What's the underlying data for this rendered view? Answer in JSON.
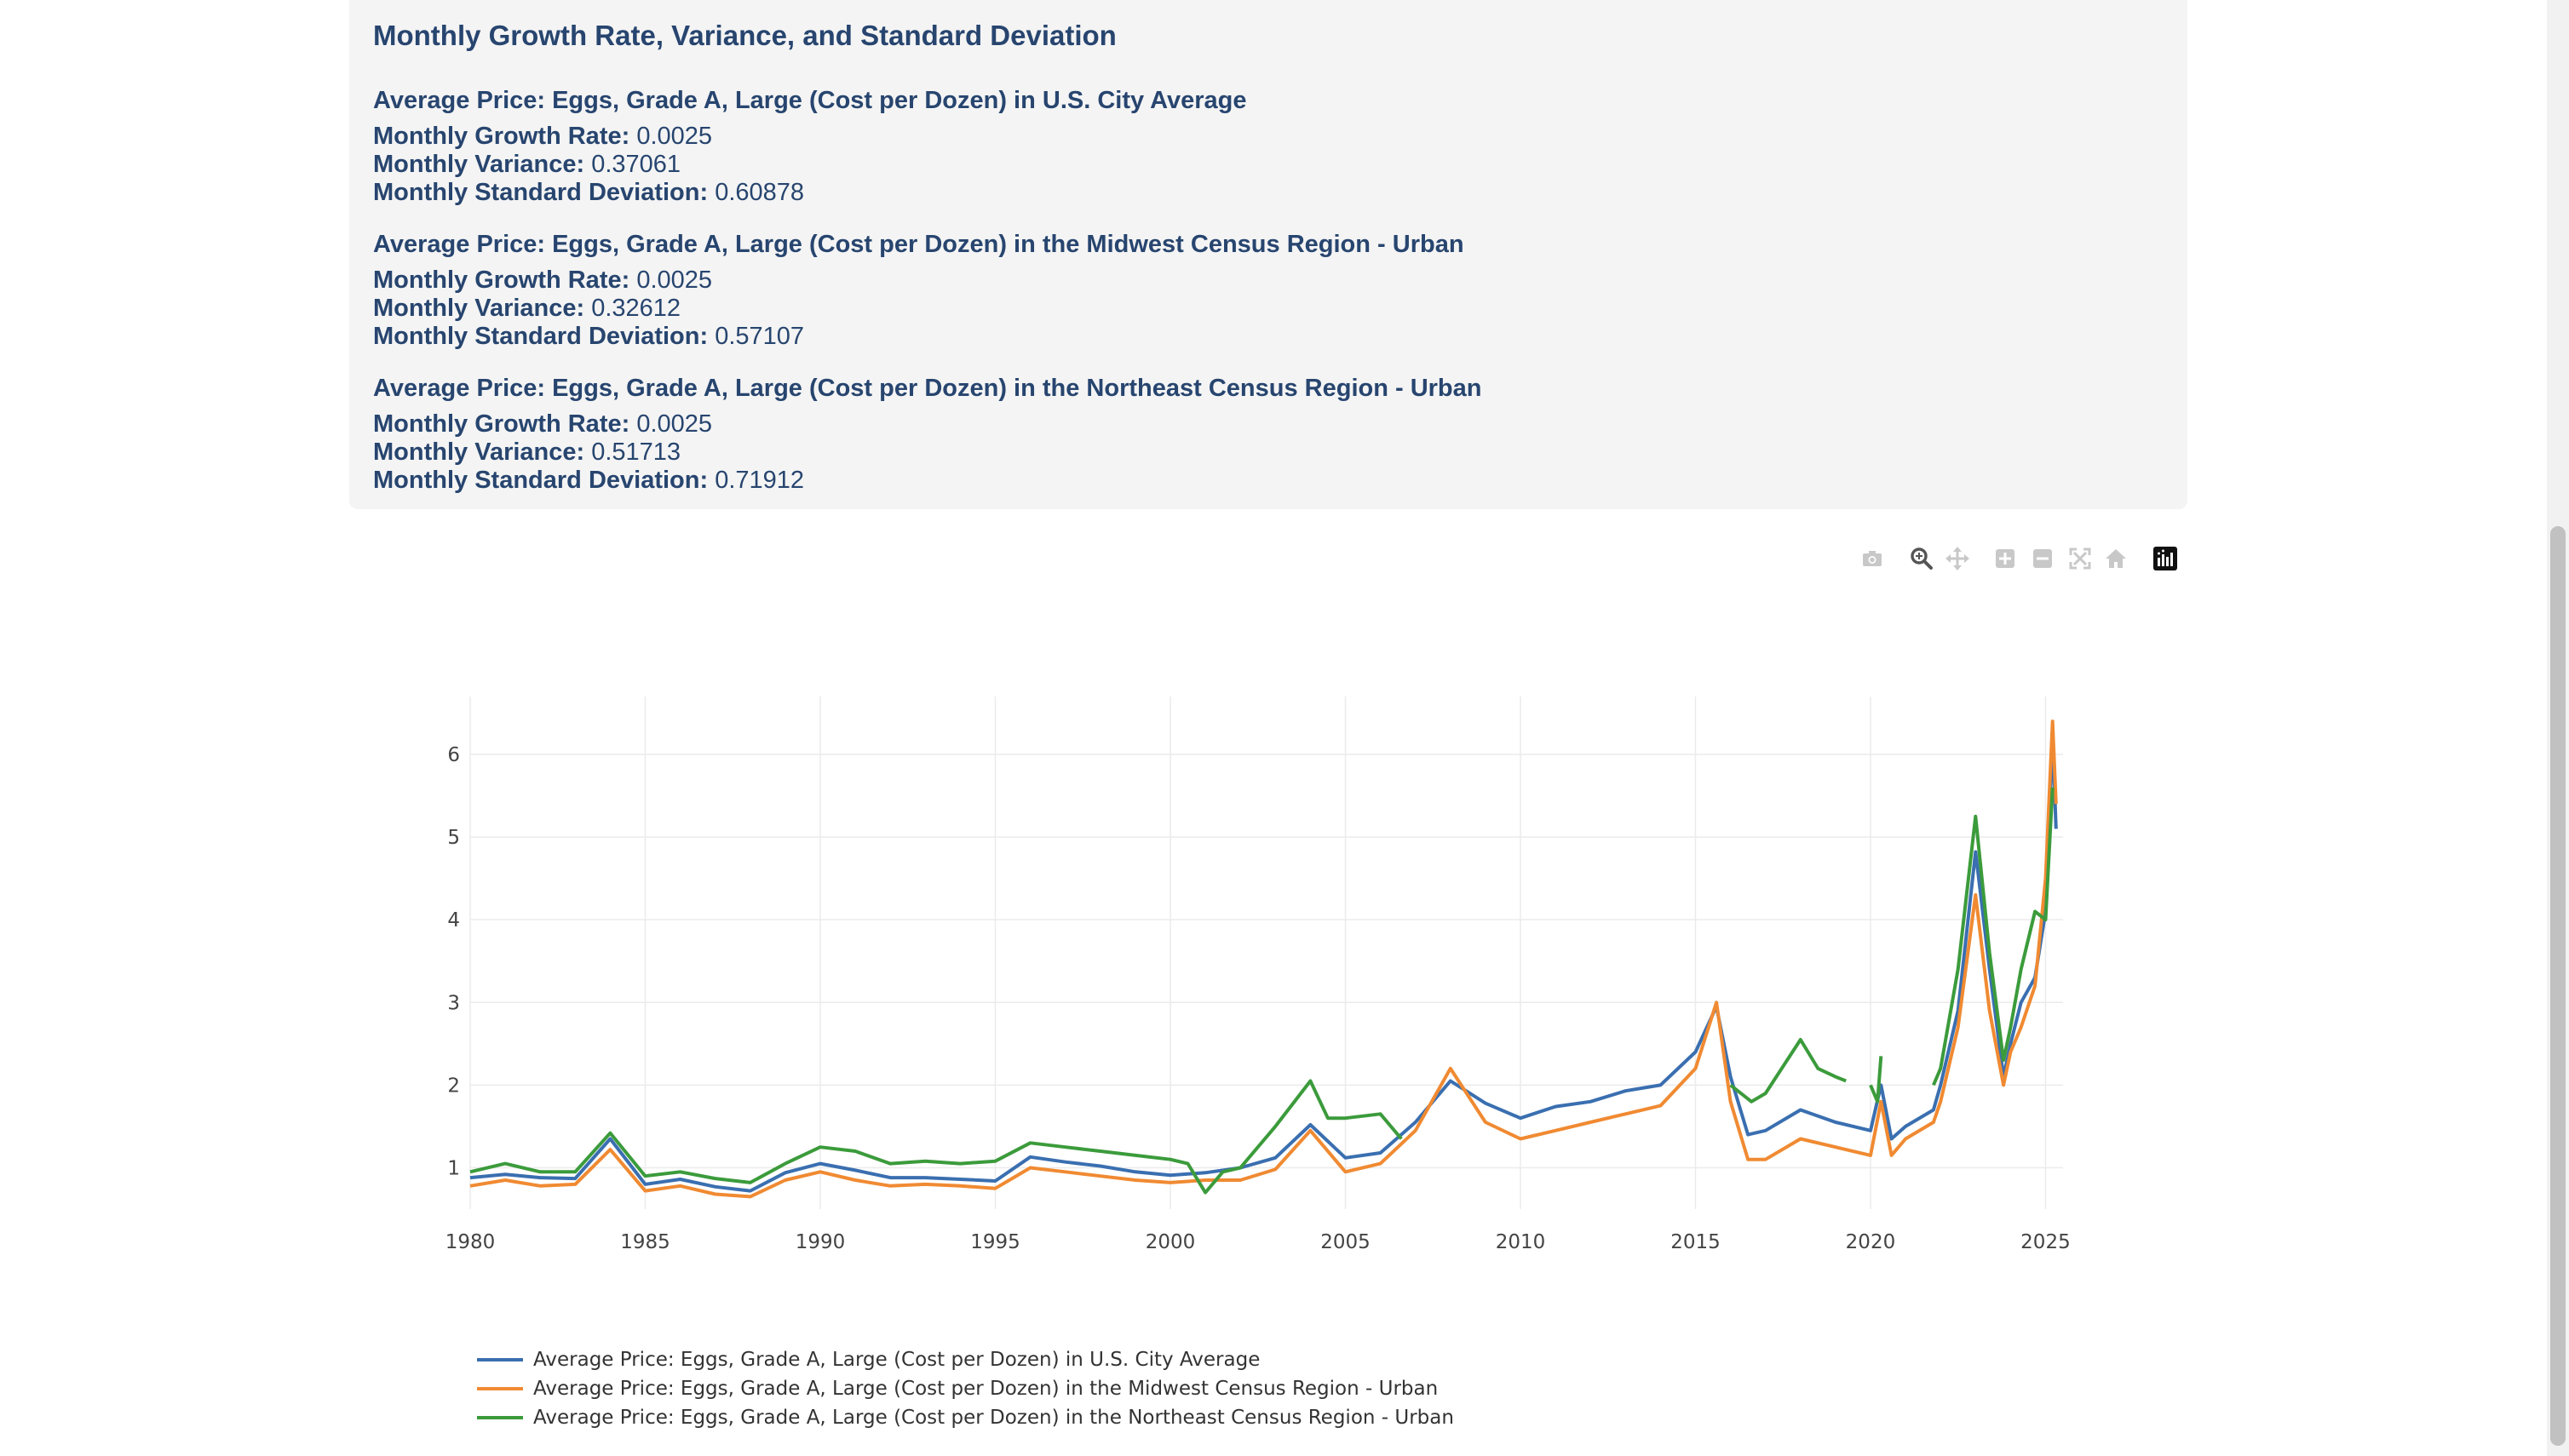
{
  "panel": {
    "title": "Monthly Growth Rate, Variance, and Standard Deviation",
    "labels": {
      "growth": "Monthly Growth Rate:",
      "variance": "Monthly Variance:",
      "std": "Monthly Standard Deviation:"
    },
    "series": [
      {
        "name": "Average Price: Eggs, Grade A, Large (Cost per Dozen) in U.S. City Average",
        "growth": "0.0025",
        "variance": "0.37061",
        "std": "0.60878"
      },
      {
        "name": "Average Price: Eggs, Grade A, Large (Cost per Dozen) in the Midwest Census Region - Urban",
        "growth": "0.0025",
        "variance": "0.32612",
        "std": "0.57107"
      },
      {
        "name": "Average Price: Eggs, Grade A, Large (Cost per Dozen) in the Northeast Census Region - Urban",
        "growth": "0.0025",
        "variance": "0.51713",
        "std": "0.71912"
      }
    ]
  },
  "toolbar": {
    "buttons": [
      {
        "name": "camera-icon",
        "active": false
      },
      {
        "name": "zoom-icon",
        "active": true
      },
      {
        "name": "pan-icon",
        "active": false
      },
      {
        "name": "zoom-in-icon",
        "active": false
      },
      {
        "name": "zoom-out-icon",
        "active": false
      },
      {
        "name": "autoscale-icon",
        "active": false
      },
      {
        "name": "home-icon",
        "active": false
      },
      {
        "name": "plotly-logo-icon",
        "active": false
      }
    ]
  },
  "chart_data": {
    "type": "line",
    "title": "",
    "xlabel": "",
    "ylabel": "",
    "xlim": [
      1980,
      2025.5
    ],
    "ylim": [
      0.5,
      6.7
    ],
    "x_ticks": [
      "1980",
      "1985",
      "1990",
      "1995",
      "2000",
      "2005",
      "2010",
      "2015",
      "2020",
      "2025"
    ],
    "y_ticks": [
      "1",
      "2",
      "3",
      "4",
      "5",
      "6"
    ],
    "grid": true,
    "legend_position": "bottom-left",
    "series": [
      {
        "name": "Average Price: Eggs, Grade A, Large (Cost per Dozen) in U.S. City Average",
        "color": "#3a6fb0",
        "points": [
          [
            1980,
            0.88
          ],
          [
            1981,
            0.92
          ],
          [
            1982,
            0.88
          ],
          [
            1983,
            0.87
          ],
          [
            1984,
            1.35
          ],
          [
            1985,
            0.8
          ],
          [
            1986,
            0.86
          ],
          [
            1987,
            0.77
          ],
          [
            1988,
            0.72
          ],
          [
            1989,
            0.94
          ],
          [
            1990,
            1.05
          ],
          [
            1991,
            0.97
          ],
          [
            1992,
            0.88
          ],
          [
            1993,
            0.88
          ],
          [
            1994,
            0.86
          ],
          [
            1995,
            0.84
          ],
          [
            1996,
            1.13
          ],
          [
            1997,
            1.07
          ],
          [
            1998,
            1.02
          ],
          [
            1999,
            0.95
          ],
          [
            2000,
            0.91
          ],
          [
            2001,
            0.94
          ],
          [
            2002,
            1.0
          ],
          [
            2003,
            1.12
          ],
          [
            2004,
            1.52
          ],
          [
            2005,
            1.12
          ],
          [
            2006,
            1.18
          ],
          [
            2007,
            1.55
          ],
          [
            2008,
            2.05
          ],
          [
            2009,
            1.78
          ],
          [
            2010,
            1.6
          ],
          [
            2011,
            1.74
          ],
          [
            2012,
            1.8
          ],
          [
            2013,
            1.93
          ],
          [
            2014,
            2.0
          ],
          [
            2015,
            2.4
          ],
          [
            2015.6,
            2.95
          ],
          [
            2016,
            2.1
          ],
          [
            2016.5,
            1.4
          ],
          [
            2017,
            1.45
          ],
          [
            2018,
            1.7
          ],
          [
            2019,
            1.55
          ],
          [
            2020,
            1.45
          ],
          [
            2020.3,
            2.0
          ],
          [
            2020.6,
            1.35
          ],
          [
            2021,
            1.5
          ],
          [
            2021.8,
            1.7
          ],
          [
            2022,
            2.0
          ],
          [
            2022.5,
            2.9
          ],
          [
            2023,
            4.82
          ],
          [
            2023.4,
            3.4
          ],
          [
            2023.8,
            2.1
          ],
          [
            2024,
            2.5
          ],
          [
            2024.3,
            3.0
          ],
          [
            2024.7,
            3.3
          ],
          [
            2025,
            4.1
          ],
          [
            2025.2,
            6.2
          ],
          [
            2025.3,
            5.1
          ]
        ]
      },
      {
        "name": "Average Price: Eggs, Grade A, Large (Cost per Dozen) in the Midwest Census Region - Urban",
        "color": "#f08a32",
        "points": [
          [
            1980,
            0.78
          ],
          [
            1981,
            0.85
          ],
          [
            1982,
            0.78
          ],
          [
            1983,
            0.8
          ],
          [
            1984,
            1.22
          ],
          [
            1985,
            0.72
          ],
          [
            1986,
            0.78
          ],
          [
            1987,
            0.68
          ],
          [
            1988,
            0.65
          ],
          [
            1989,
            0.85
          ],
          [
            1990,
            0.95
          ],
          [
            1991,
            0.85
          ],
          [
            1992,
            0.78
          ],
          [
            1993,
            0.8
          ],
          [
            1994,
            0.78
          ],
          [
            1995,
            0.75
          ],
          [
            1996,
            1.0
          ],
          [
            1997,
            0.95
          ],
          [
            1998,
            0.9
          ],
          [
            1999,
            0.85
          ],
          [
            2000,
            0.82
          ],
          [
            2001,
            0.85
          ],
          [
            2002,
            0.85
          ],
          [
            2003,
            0.98
          ],
          [
            2004,
            1.45
          ],
          [
            2005,
            0.95
          ],
          [
            2006,
            1.05
          ],
          [
            2007,
            1.45
          ],
          [
            2008,
            2.2
          ],
          [
            2009,
            1.55
          ],
          [
            2010,
            1.35
          ],
          [
            2011,
            1.45
          ],
          [
            2012,
            1.55
          ],
          [
            2013,
            1.65
          ],
          [
            2014,
            1.75
          ],
          [
            2015,
            2.2
          ],
          [
            2015.6,
            3.0
          ],
          [
            2016,
            1.8
          ],
          [
            2016.5,
            1.1
          ],
          [
            2017,
            1.1
          ],
          [
            2018,
            1.35
          ],
          [
            2019,
            1.25
          ],
          [
            2020,
            1.15
          ],
          [
            2020.3,
            1.8
          ],
          [
            2020.6,
            1.15
          ],
          [
            2021,
            1.35
          ],
          [
            2021.8,
            1.55
          ],
          [
            2022,
            1.8
          ],
          [
            2022.5,
            2.7
          ],
          [
            2023,
            4.3
          ],
          [
            2023.4,
            2.9
          ],
          [
            2023.8,
            2.0
          ],
          [
            2024,
            2.4
          ],
          [
            2024.3,
            2.7
          ],
          [
            2024.7,
            3.2
          ],
          [
            2025,
            4.5
          ],
          [
            2025.2,
            6.4
          ],
          [
            2025.3,
            5.4
          ]
        ]
      },
      {
        "name": "Average Price: Eggs, Grade A, Large (Cost per Dozen) in the Northeast Census Region - Urban",
        "color": "#3b9b3b",
        "points": [
          [
            1980,
            0.95
          ],
          [
            1981,
            1.05
          ],
          [
            1982,
            0.95
          ],
          [
            1983,
            0.95
          ],
          [
            1984,
            1.42
          ],
          [
            1985,
            0.9
          ],
          [
            1986,
            0.95
          ],
          [
            1987,
            0.87
          ],
          [
            1988,
            0.82
          ],
          [
            1989,
            1.05
          ],
          [
            1990,
            1.25
          ],
          [
            1991,
            1.2
          ],
          [
            1992,
            1.05
          ],
          [
            1993,
            1.08
          ],
          [
            1994,
            1.05
          ],
          [
            1995,
            1.08
          ],
          [
            1996,
            1.3
          ],
          [
            1997,
            1.25
          ],
          [
            1998,
            1.2
          ],
          [
            1999,
            1.15
          ],
          [
            2000,
            1.1
          ],
          [
            2000.5,
            1.05
          ],
          [
            2001,
            0.7
          ],
          [
            2001.5,
            0.95
          ],
          [
            2002,
            1.0
          ],
          [
            2003,
            1.5
          ],
          [
            2004,
            2.05
          ],
          [
            2004.5,
            1.6
          ],
          [
            2005,
            1.6
          ],
          [
            2006,
            1.65
          ],
          [
            2006.6,
            1.35
          ],
          null,
          [
            2016,
            2.0
          ],
          [
            2016.6,
            1.8
          ],
          [
            2017,
            1.9
          ],
          [
            2018,
            2.55
          ],
          [
            2018.5,
            2.2
          ],
          [
            2019,
            2.1
          ],
          [
            2019.3,
            2.05
          ],
          null,
          [
            2020,
            2.0
          ],
          [
            2020.2,
            1.8
          ],
          [
            2020.3,
            2.35
          ],
          null,
          [
            2021.8,
            2.0
          ],
          [
            2022,
            2.2
          ],
          [
            2022.5,
            3.4
          ],
          [
            2023,
            5.25
          ],
          [
            2023.4,
            3.6
          ],
          [
            2023.8,
            2.3
          ],
          [
            2024,
            2.7
          ],
          [
            2024.3,
            3.4
          ],
          [
            2024.7,
            4.1
          ],
          [
            2025,
            4.0
          ],
          [
            2025.2,
            5.6
          ]
        ]
      }
    ]
  }
}
